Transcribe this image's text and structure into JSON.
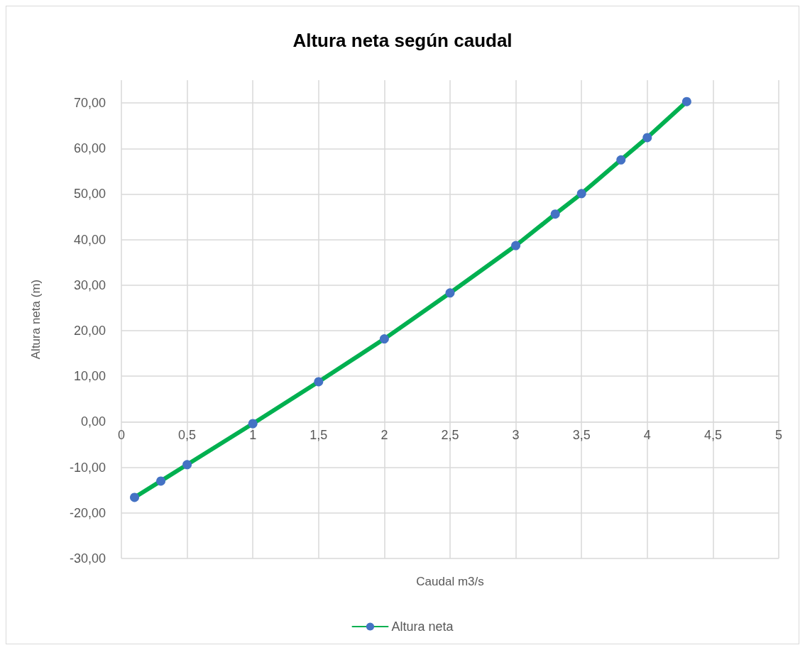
{
  "chart_data": {
    "type": "line",
    "title": "Altura neta según caudal",
    "xlabel": "Caudal m3/s",
    "ylabel": "Altura neta (m)",
    "x": [
      0.1,
      0.3,
      0.5,
      1,
      1.5,
      2,
      2.5,
      3,
      3.3,
      3.5,
      3.8,
      4,
      4.3
    ],
    "series": [
      {
        "name": "Altura neta",
        "color": "#00b050",
        "colors": [
          "#4472c4",
          "#4472c4",
          "#4472c4",
          "#4472c4",
          "#4472c4",
          "#4472c4",
          "#4472c4",
          "#4472c4",
          "#4472c4",
          "#4472c4",
          "#4472c4",
          "#4472c4",
          "#4472c4"
        ],
        "values": [
          -16.6,
          -13.0,
          -9.4,
          -0.4,
          8.8,
          18.2,
          28.3,
          38.7,
          45.6,
          50.1,
          57.5,
          62.4,
          70.3
        ]
      }
    ],
    "xlim": [
      0,
      5
    ],
    "xticks": [
      0,
      {
        "value": 0.5,
        "label": "0,5"
      },
      1,
      {
        "value": 1.5,
        "label": "1,5"
      },
      2,
      {
        "value": 2.5,
        "label": "2,5"
      },
      3,
      {
        "value": 3.5,
        "label": "3,5"
      },
      4,
      {
        "value": 4.5,
        "label": "4,5"
      },
      5
    ],
    "ylim": [
      -30,
      75
    ],
    "yticks": [
      {
        "value": -30,
        "label": "-30,00"
      },
      {
        "value": -20,
        "label": "-20,00"
      },
      {
        "value": -10,
        "label": "-10,00"
      },
      {
        "value": 0,
        "label": "0,00"
      },
      {
        "value": 10,
        "label": "10,00"
      },
      {
        "value": 20,
        "label": "20,00"
      },
      {
        "value": 30,
        "label": "30,00"
      },
      {
        "value": 40,
        "label": "40,00"
      },
      {
        "value": 50,
        "label": "50,00"
      },
      {
        "value": 60,
        "label": "60,00"
      },
      {
        "value": 70,
        "label": "70,00"
      }
    ],
    "grid": true,
    "legend": "bottom",
    "marker": "circle",
    "line_style": "solid"
  }
}
